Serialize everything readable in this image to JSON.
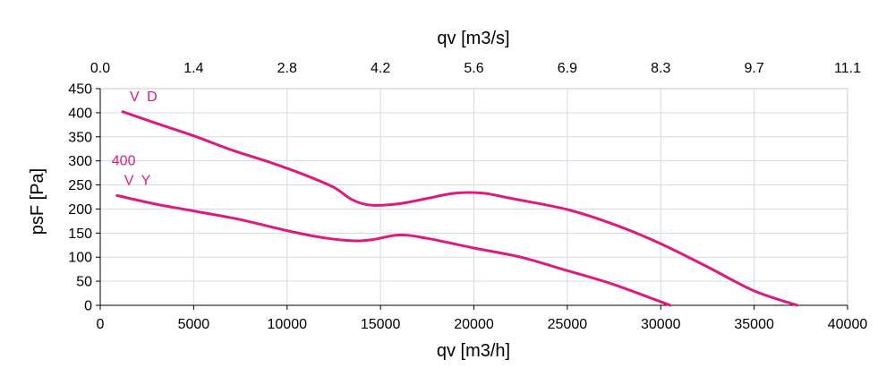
{
  "chart_data": {
    "type": "line",
    "title": "",
    "xlabel": "qv [m3/h]",
    "x2label": "qv [m3/s]",
    "ylabel": "psF [Pa]",
    "xlim": [
      0,
      40000
    ],
    "ylim": [
      0,
      450
    ],
    "x_ticks": [
      0,
      5000,
      10000,
      15000,
      20000,
      25000,
      30000,
      35000,
      40000
    ],
    "x_tick_labels": [
      "0",
      "5000",
      "10000",
      "15000",
      "20000",
      "25000",
      "30000",
      "35000",
      "40000"
    ],
    "x2_tick_labels": [
      "0.0",
      "1.4",
      "2.8",
      "4.2",
      "5.6",
      "6.9",
      "8.3",
      "9.7",
      "11.1"
    ],
    "y_ticks": [
      0,
      50,
      100,
      150,
      200,
      250,
      300,
      350,
      400,
      450
    ],
    "y_tick_labels": [
      "0",
      "50",
      "100",
      "150",
      "200",
      "250",
      "300",
      "350",
      "400",
      "450"
    ],
    "grid": true,
    "line_color": "#e0197d",
    "annotation": "400",
    "series": [
      {
        "name": "V D",
        "x": [
          1200,
          3000,
          5000,
          7000,
          9000,
          11000,
          12500,
          13500,
          14500,
          16000,
          17500,
          19000,
          20500,
          22000,
          25000,
          27500,
          30000,
          32500,
          35000,
          37300
        ],
        "y": [
          402,
          378,
          352,
          323,
          298,
          270,
          245,
          219,
          208,
          211,
          222,
          233,
          233,
          222,
          199,
          168,
          128,
          80,
          30,
          0
        ]
      },
      {
        "name": "V Y",
        "x": [
          900,
          3000,
          5000,
          7500,
          10000,
          12000,
          13500,
          14500,
          16000,
          17500,
          20000,
          22500,
          25000,
          27500,
          30500
        ],
        "y": [
          228,
          210,
          196,
          178,
          155,
          140,
          134,
          136,
          146,
          139,
          119,
          100,
          72,
          43,
          0
        ]
      }
    ]
  }
}
